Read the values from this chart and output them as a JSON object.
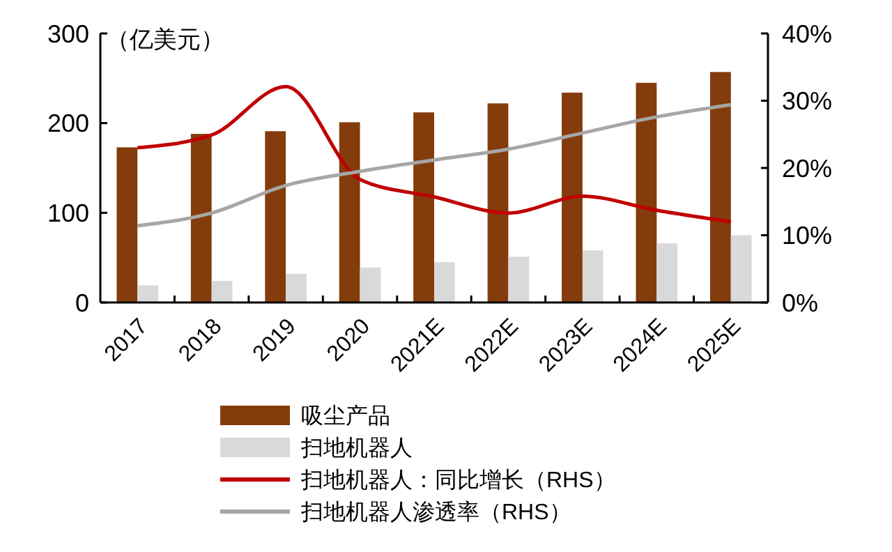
{
  "chart_data": {
    "type": "bar",
    "ylabel": "（亿美元）",
    "categories": [
      "2017",
      "2018",
      "2019",
      "2020",
      "2021E",
      "2022E",
      "2023E",
      "2024E",
      "2025E"
    ],
    "ylim": [
      0,
      300
    ],
    "yticks": [
      0,
      100,
      200,
      300
    ],
    "y2lim": [
      0,
      40
    ],
    "y2ticks": [
      {
        "value": 0,
        "label": "0%"
      },
      {
        "value": 10,
        "label": "10%"
      },
      {
        "value": 20,
        "label": "20%"
      },
      {
        "value": 30,
        "label": "30%"
      },
      {
        "value": 40,
        "label": "40%"
      }
    ],
    "legend": "bottom",
    "grid": false,
    "series": [
      {
        "name": "吸尘产品",
        "color": "#843c0c",
        "values": [
          173,
          188,
          191,
          201,
          212,
          222,
          234,
          245,
          257
        ]
      },
      {
        "name": "扫地机器人",
        "color": "#d9d9d9",
        "values": [
          19,
          24,
          32,
          39,
          45,
          51,
          58,
          66,
          75
        ]
      },
      {
        "name": "扫地机器人：同比增长（RHS）",
        "type": "line",
        "axis": "y2",
        "color": "#c00000",
        "values": [
          23.0,
          24.9,
          32.1,
          18.3,
          15.7,
          13.3,
          15.8,
          13.7,
          12.0
        ]
      },
      {
        "name": "扫地机器人渗透率（RHS）",
        "type": "line",
        "axis": "y2",
        "color": "#a6a6a6",
        "values": [
          11.4,
          13.3,
          17.4,
          19.5,
          21.2,
          22.8,
          25.2,
          27.6,
          29.4
        ]
      }
    ]
  }
}
